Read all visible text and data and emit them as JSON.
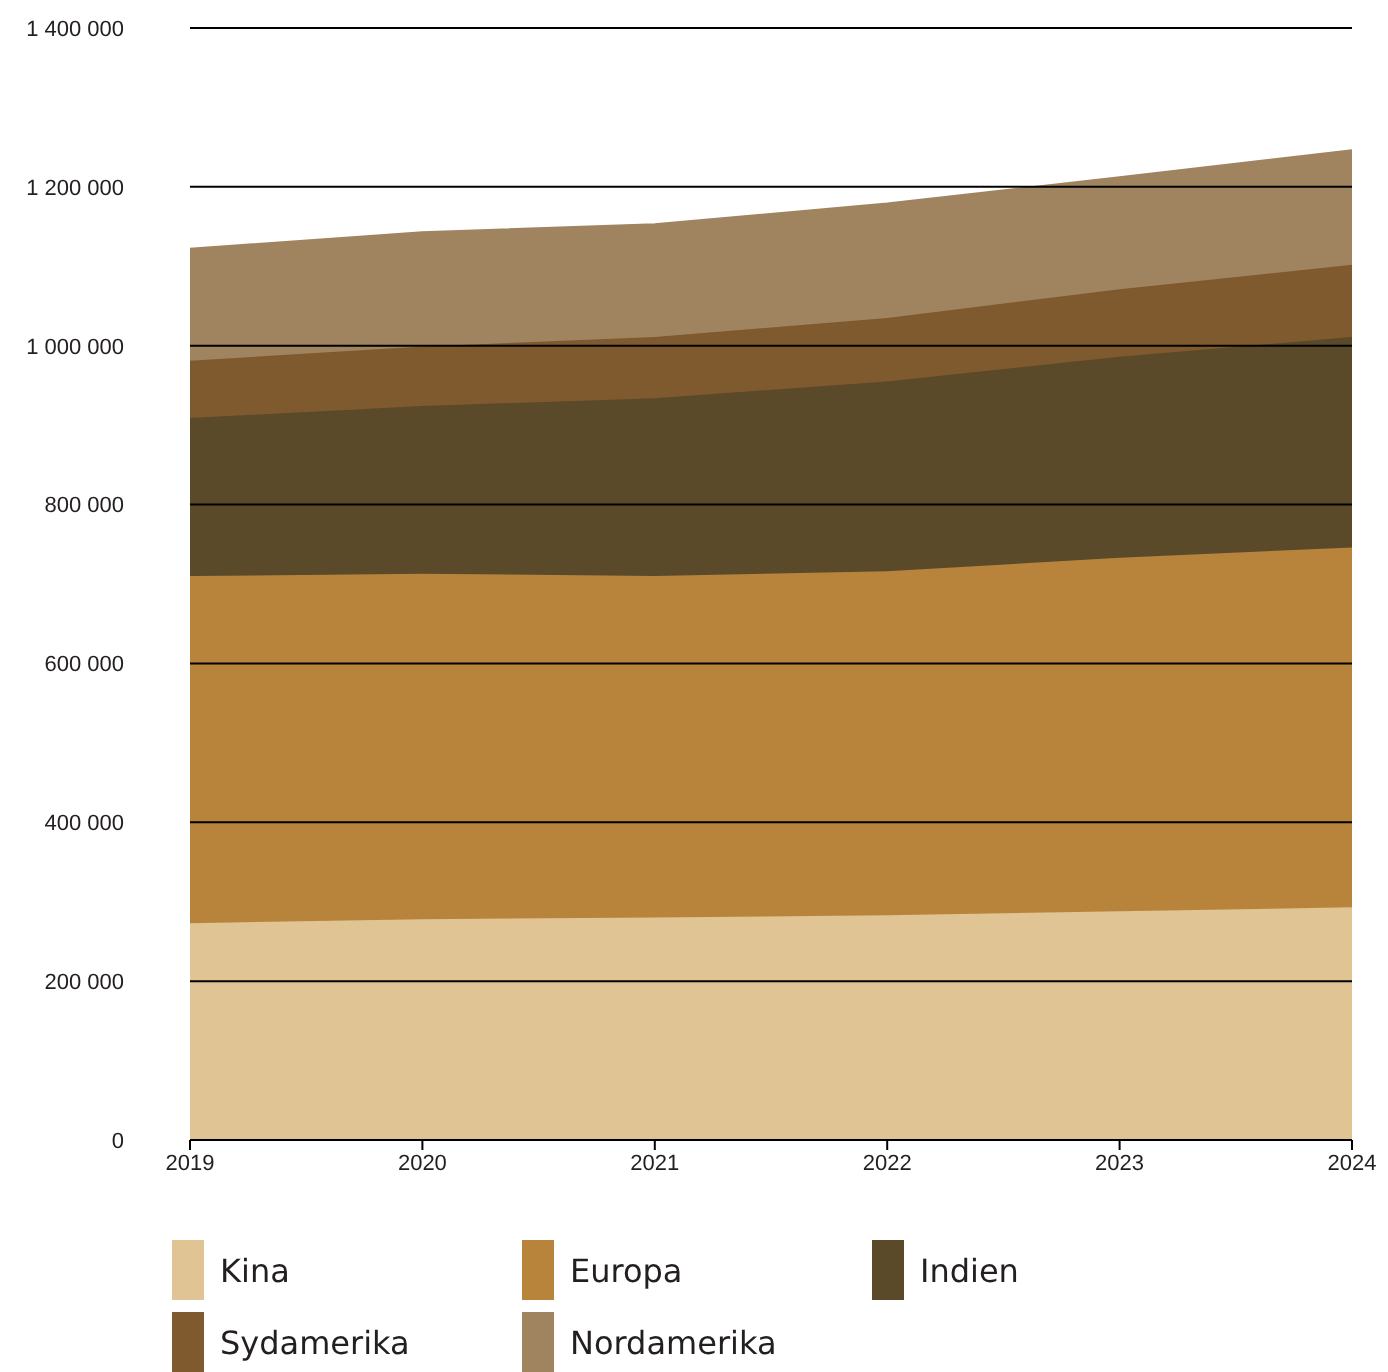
{
  "chart_data": {
    "type": "area",
    "stacked": true,
    "categories": [
      "2019",
      "2020",
      "2021",
      "2022",
      "2023",
      "2024"
    ],
    "series": [
      {
        "name": "Kina",
        "color": "#e0c494",
        "values": [
          273000,
          278000,
          280000,
          283000,
          288000,
          293000
        ]
      },
      {
        "name": "Europa",
        "color": "#b8843b",
        "values": [
          437000,
          435000,
          430000,
          433000,
          445000,
          453000
        ]
      },
      {
        "name": "Indien",
        "color": "#5a4a2a",
        "values": [
          199000,
          211000,
          224000,
          239000,
          253000,
          265000
        ]
      },
      {
        "name": "Sydamerika",
        "color": "#7f5a2e",
        "values": [
          72000,
          75000,
          77000,
          80000,
          85000,
          91000
        ]
      },
      {
        "name": "Nordamerika",
        "color": "#a08460",
        "values": [
          141000,
          144000,
          142000,
          144000,
          141000,
          144000
        ]
      }
    ],
    "ylim": [
      0,
      1400000
    ],
    "yticks": [
      0,
      {
        "value": 200000,
        "label": "200 000"
      },
      {
        "value": 400000,
        "label": "400 000"
      },
      {
        "value": 600000,
        "label": "600 000"
      },
      {
        "value": 800000,
        "label": "800 000"
      },
      {
        "value": 1000000,
        "label": "1 000 000"
      },
      {
        "value": 1200000,
        "label": "1 200 000"
      },
      {
        "value": 1400000,
        "label": "1 400 000"
      }
    ],
    "grid": "y",
    "legend": "bottom"
  }
}
